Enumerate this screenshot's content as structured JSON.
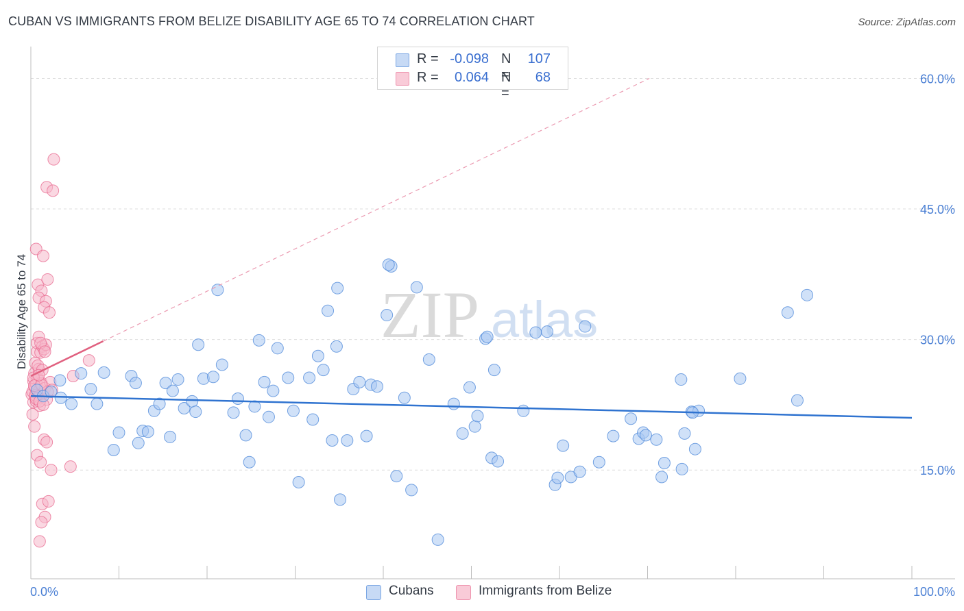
{
  "header": {
    "title": "CUBAN VS IMMIGRANTS FROM BELIZE DISABILITY AGE 65 TO 74 CORRELATION CHART",
    "source": "Source: ZipAtlas.com"
  },
  "watermark": {
    "zip": "ZIP",
    "atlas": "atlas"
  },
  "legend": {
    "rows": [
      {
        "swatch": "#a9c8f2",
        "r_label": "R = ",
        "r_value": "-0.098",
        "n_label": "N = ",
        "n_value": "107"
      },
      {
        "swatch": "#f6b8ca",
        "r_label": "R = ",
        "r_value": "0.064",
        "n_label": "N = ",
        "n_value": "68"
      }
    ]
  },
  "bottom_legend": {
    "a": "Cubans",
    "b": "Immigrants from Belize"
  },
  "axes": {
    "ylabel": "Disability Age 65 to 74",
    "x_min_label": "0.0%",
    "x_max_label": "100.0%",
    "y_ticks": [
      {
        "value": 60,
        "label": "60.0%"
      },
      {
        "value": 45,
        "label": "45.0%"
      },
      {
        "value": 30,
        "label": "30.0%"
      },
      {
        "value": 15,
        "label": "15.0%"
      }
    ]
  },
  "chart_data": {
    "type": "scatter",
    "title": "CUBAN VS IMMIGRANTS FROM BELIZE DISABILITY AGE 65 TO 74 CORRELATION CHART",
    "xlabel": "",
    "ylabel": "Disability Age 65 to 74",
    "xlim": [
      0,
      100
    ],
    "ylim": [
      2.5,
      63.5
    ],
    "colors": {
      "cubans": "#4a86d8",
      "cubans_fill": "#a9c8f2",
      "belize": "#e8688f",
      "belize_fill": "#f6b8ca"
    },
    "series": [
      {
        "name": "Cubans",
        "trend": {
          "x": [
            0,
            100
          ],
          "y": [
            23.5,
            21.0
          ]
        },
        "points": [
          [
            0.7,
            24.2
          ],
          [
            1.4,
            23.5
          ],
          [
            2.3,
            24.0
          ],
          [
            3.4,
            23.3
          ],
          [
            4.6,
            22.6
          ],
          [
            5.7,
            26.1
          ],
          [
            6.8,
            24.3
          ],
          [
            3.3,
            25.3
          ],
          [
            7.5,
            22.6
          ],
          [
            8.3,
            26.2
          ],
          [
            9.4,
            17.3
          ],
          [
            10.0,
            19.3
          ],
          [
            11.4,
            25.8
          ],
          [
            11.9,
            25.0
          ],
          [
            12.2,
            18.1
          ],
          [
            12.7,
            19.5
          ],
          [
            13.3,
            19.4
          ],
          [
            14.0,
            21.8
          ],
          [
            14.6,
            22.6
          ],
          [
            15.3,
            25.0
          ],
          [
            15.8,
            18.8
          ],
          [
            16.1,
            24.1
          ],
          [
            16.7,
            25.4
          ],
          [
            17.4,
            22.1
          ],
          [
            18.3,
            22.9
          ],
          [
            18.7,
            21.7
          ],
          [
            19.0,
            29.4
          ],
          [
            19.6,
            25.5
          ],
          [
            20.7,
            25.7
          ],
          [
            21.2,
            35.7
          ],
          [
            21.7,
            27.1
          ],
          [
            23.0,
            21.6
          ],
          [
            23.5,
            23.2
          ],
          [
            24.4,
            19.0
          ],
          [
            24.8,
            15.9
          ],
          [
            25.4,
            22.3
          ],
          [
            25.9,
            29.9
          ],
          [
            26.5,
            25.1
          ],
          [
            27.0,
            21.1
          ],
          [
            27.5,
            24.1
          ],
          [
            28.0,
            29.0
          ],
          [
            29.2,
            25.6
          ],
          [
            29.8,
            21.8
          ],
          [
            30.4,
            13.6
          ],
          [
            31.6,
            25.6
          ],
          [
            32.0,
            20.8
          ],
          [
            32.6,
            28.1
          ],
          [
            33.2,
            26.5
          ],
          [
            33.7,
            33.3
          ],
          [
            34.2,
            18.4
          ],
          [
            34.7,
            29.2
          ],
          [
            35.1,
            11.6
          ],
          [
            35.9,
            18.4
          ],
          [
            36.6,
            24.3
          ],
          [
            37.3,
            25.1
          ],
          [
            38.1,
            18.9
          ],
          [
            38.6,
            24.8
          ],
          [
            39.3,
            24.6
          ],
          [
            40.4,
            32.8
          ],
          [
            40.9,
            38.4
          ],
          [
            41.5,
            14.3
          ],
          [
            42.4,
            23.3
          ],
          [
            43.2,
            12.7
          ],
          [
            43.8,
            36.0
          ],
          [
            45.2,
            27.7
          ],
          [
            46.2,
            7.0
          ],
          [
            48.0,
            22.6
          ],
          [
            49.0,
            19.2
          ],
          [
            49.8,
            24.5
          ],
          [
            50.4,
            20.0
          ],
          [
            50.7,
            21.2
          ],
          [
            51.6,
            30.1
          ],
          [
            51.8,
            30.3
          ],
          [
            52.3,
            16.4
          ],
          [
            52.6,
            26.5
          ],
          [
            53.0,
            16.0
          ],
          [
            55.9,
            21.8
          ],
          [
            57.3,
            30.8
          ],
          [
            58.6,
            30.9
          ],
          [
            59.5,
            13.3
          ],
          [
            59.8,
            14.1
          ],
          [
            60.4,
            17.8
          ],
          [
            61.3,
            14.2
          ],
          [
            62.3,
            14.8
          ],
          [
            62.9,
            31.5
          ],
          [
            64.5,
            15.9
          ],
          [
            66.1,
            18.9
          ],
          [
            68.1,
            20.9
          ],
          [
            69.0,
            18.6
          ],
          [
            69.5,
            19.3
          ],
          [
            69.8,
            19.0
          ],
          [
            71.0,
            18.5
          ],
          [
            71.6,
            14.2
          ],
          [
            71.9,
            15.8
          ],
          [
            73.8,
            25.4
          ],
          [
            73.9,
            15.1
          ],
          [
            74.2,
            19.2
          ],
          [
            75.0,
            21.7
          ],
          [
            75.4,
            17.4
          ],
          [
            75.8,
            21.8
          ],
          [
            75.1,
            21.6
          ],
          [
            80.5,
            25.5
          ],
          [
            85.9,
            33.1
          ],
          [
            87.0,
            23.0
          ],
          [
            88.1,
            35.1
          ],
          [
            40.6,
            38.6
          ],
          [
            34.8,
            35.9
          ]
        ]
      },
      {
        "name": "Immigrants from Belize",
        "trend": {
          "x": [
            0,
            8.2
          ],
          "y": [
            25.8,
            29.8
          ]
        },
        "trend_extension": {
          "x": [
            8.2,
            70.2
          ],
          "y": [
            29.8,
            60.0
          ]
        },
        "points": [
          [
            0.1,
            23.7
          ],
          [
            0.2,
            24.0
          ],
          [
            0.3,
            25.2
          ],
          [
            0.3,
            22.8
          ],
          [
            0.4,
            24.6
          ],
          [
            0.4,
            26.1
          ],
          [
            0.5,
            23.4
          ],
          [
            0.5,
            27.3
          ],
          [
            0.6,
            24.9
          ],
          [
            0.6,
            22.9
          ],
          [
            0.7,
            28.6
          ],
          [
            0.7,
            29.6
          ],
          [
            0.8,
            25.5
          ],
          [
            0.8,
            23.7
          ],
          [
            0.9,
            26.6
          ],
          [
            0.9,
            30.3
          ],
          [
            1.0,
            24.2
          ],
          [
            1.0,
            22.4
          ],
          [
            1.1,
            28.5
          ],
          [
            1.2,
            25.0
          ],
          [
            1.3,
            29.2
          ],
          [
            1.4,
            23.8
          ],
          [
            1.5,
            28.9
          ],
          [
            1.6,
            24.4
          ],
          [
            1.7,
            29.4
          ],
          [
            1.8,
            23.1
          ],
          [
            0.2,
            21.4
          ],
          [
            0.4,
            20.0
          ],
          [
            0.7,
            16.7
          ],
          [
            1.1,
            15.9
          ],
          [
            1.3,
            11.1
          ],
          [
            1.5,
            18.5
          ],
          [
            1.6,
            9.6
          ],
          [
            1.8,
            18.2
          ],
          [
            2.0,
            11.4
          ],
          [
            2.3,
            15.0
          ],
          [
            0.6,
            40.4
          ],
          [
            1.4,
            39.6
          ],
          [
            0.8,
            36.3
          ],
          [
            1.2,
            35.6
          ],
          [
            1.9,
            36.9
          ],
          [
            0.9,
            34.8
          ],
          [
            1.7,
            34.4
          ],
          [
            1.5,
            33.7
          ],
          [
            2.1,
            33.1
          ],
          [
            0.5,
            23.6
          ],
          [
            1.2,
            9.0
          ],
          [
            1.0,
            6.8
          ],
          [
            1.8,
            47.5
          ],
          [
            2.5,
            47.1
          ],
          [
            2.6,
            50.7
          ],
          [
            2.2,
            25.1
          ],
          [
            2.4,
            24.2
          ],
          [
            4.5,
            15.4
          ],
          [
            4.8,
            25.8
          ],
          [
            6.6,
            27.6
          ],
          [
            1.1,
            29.6
          ],
          [
            0.8,
            27.0
          ],
          [
            1.6,
            28.6
          ],
          [
            0.3,
            25.6
          ],
          [
            1.9,
            24.0
          ],
          [
            1.3,
            26.5
          ],
          [
            0.4,
            24.7
          ],
          [
            0.6,
            23.2
          ],
          [
            1.0,
            22.9
          ],
          [
            1.2,
            24.8
          ],
          [
            0.9,
            25.9
          ],
          [
            1.4,
            22.5
          ]
        ]
      }
    ]
  }
}
